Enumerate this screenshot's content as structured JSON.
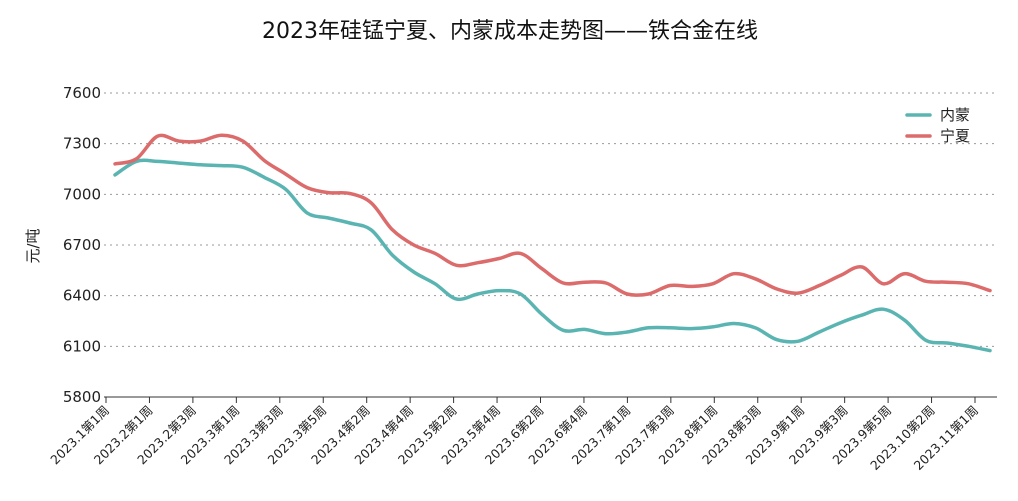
{
  "chart_data": {
    "type": "line",
    "title": "2023年硅锰宁夏、内蒙成本走势图——铁合金在线",
    "xlabel": "",
    "ylabel": "元/吨",
    "ylim": [
      5800,
      7600
    ],
    "yticks": [
      5800,
      6100,
      6400,
      6700,
      7000,
      7300,
      7600
    ],
    "grid": "horizontal-dotted",
    "legend_position": "top-right",
    "x_tick_labels": [
      "2023.1第1周",
      "2023.2第1周",
      "2023.2第3周",
      "2023.3第1周",
      "2023.3第3周",
      "2023.3第5周",
      "2023.4第2周",
      "2023.4第4周",
      "2023.5第2周",
      "2023.5第4周",
      "2023.6第2周",
      "2023.6第4周",
      "2023.7第1周",
      "2023.7第3周",
      "2023.8第1周",
      "2023.8第3周",
      "2023.9第1周",
      "2023.9第3周",
      "2023.9第5周",
      "2023.10第2周",
      "2023.11第1周"
    ],
    "n_points": 42,
    "series": [
      {
        "name": "内蒙",
        "color": "#5ab5b2",
        "values": [
          7115,
          7195,
          7195,
          7185,
          7175,
          7170,
          7160,
          7100,
          7030,
          6890,
          6860,
          6830,
          6790,
          6640,
          6540,
          6470,
          6380,
          6410,
          6430,
          6410,
          6290,
          6195,
          6200,
          6175,
          6185,
          6210,
          6210,
          6205,
          6215,
          6235,
          6210,
          6140,
          6130,
          6185,
          6240,
          6285,
          6320,
          6255,
          6135,
          6120,
          6100,
          6075
        ]
      },
      {
        "name": "宁夏",
        "color": "#dc6b6b",
        "values": [
          7180,
          7210,
          7345,
          7315,
          7315,
          7350,
          7315,
          7200,
          7120,
          7040,
          7010,
          7005,
          6950,
          6790,
          6700,
          6650,
          6580,
          6595,
          6620,
          6650,
          6560,
          6475,
          6480,
          6475,
          6410,
          6410,
          6460,
          6455,
          6470,
          6530,
          6500,
          6440,
          6415,
          6460,
          6520,
          6570,
          6470,
          6530,
          6485,
          6480,
          6470,
          6430
        ]
      }
    ]
  }
}
